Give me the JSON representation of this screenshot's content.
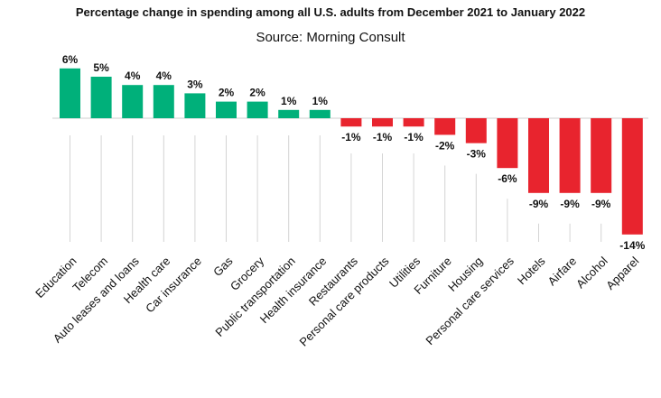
{
  "chart_data": {
    "type": "bar",
    "title": "Percentage change in spending among all U.S. adults from December 2021 to January 2022",
    "subtitle": "Source: Morning Consult",
    "xlabel": "",
    "ylabel": "",
    "ylim": [
      -14,
      6
    ],
    "unit": "%",
    "categories": [
      "Education",
      "Telecom",
      "Auto leases and loans",
      "Health care",
      "Car insurance",
      "Gas",
      "Grocery",
      "Public transportation",
      "Health insurance",
      "Restaurants",
      "Personal care products",
      "Utilities",
      "Furniture",
      "Housing",
      "Personal care services",
      "Hotels",
      "Airfare",
      "Alcohol",
      "Apparel"
    ],
    "values": [
      6,
      5,
      4,
      4,
      3,
      2,
      2,
      1,
      1,
      -1,
      -1,
      -1,
      -2,
      -3,
      -6,
      -9,
      -9,
      -9,
      -14
    ],
    "data_labels": [
      "6%",
      "5%",
      "4%",
      "4%",
      "3%",
      "2%",
      "2%",
      "1%",
      "1%",
      "-1%",
      "-1%",
      "-1%",
      "-2%",
      "-3%",
      "-6%",
      "-9%",
      "-9%",
      "-9%",
      "-14%"
    ],
    "colors": {
      "positive": "#00b07a",
      "negative": "#e8242e",
      "gridline": "#d4d4d4",
      "text": "#111111"
    }
  }
}
